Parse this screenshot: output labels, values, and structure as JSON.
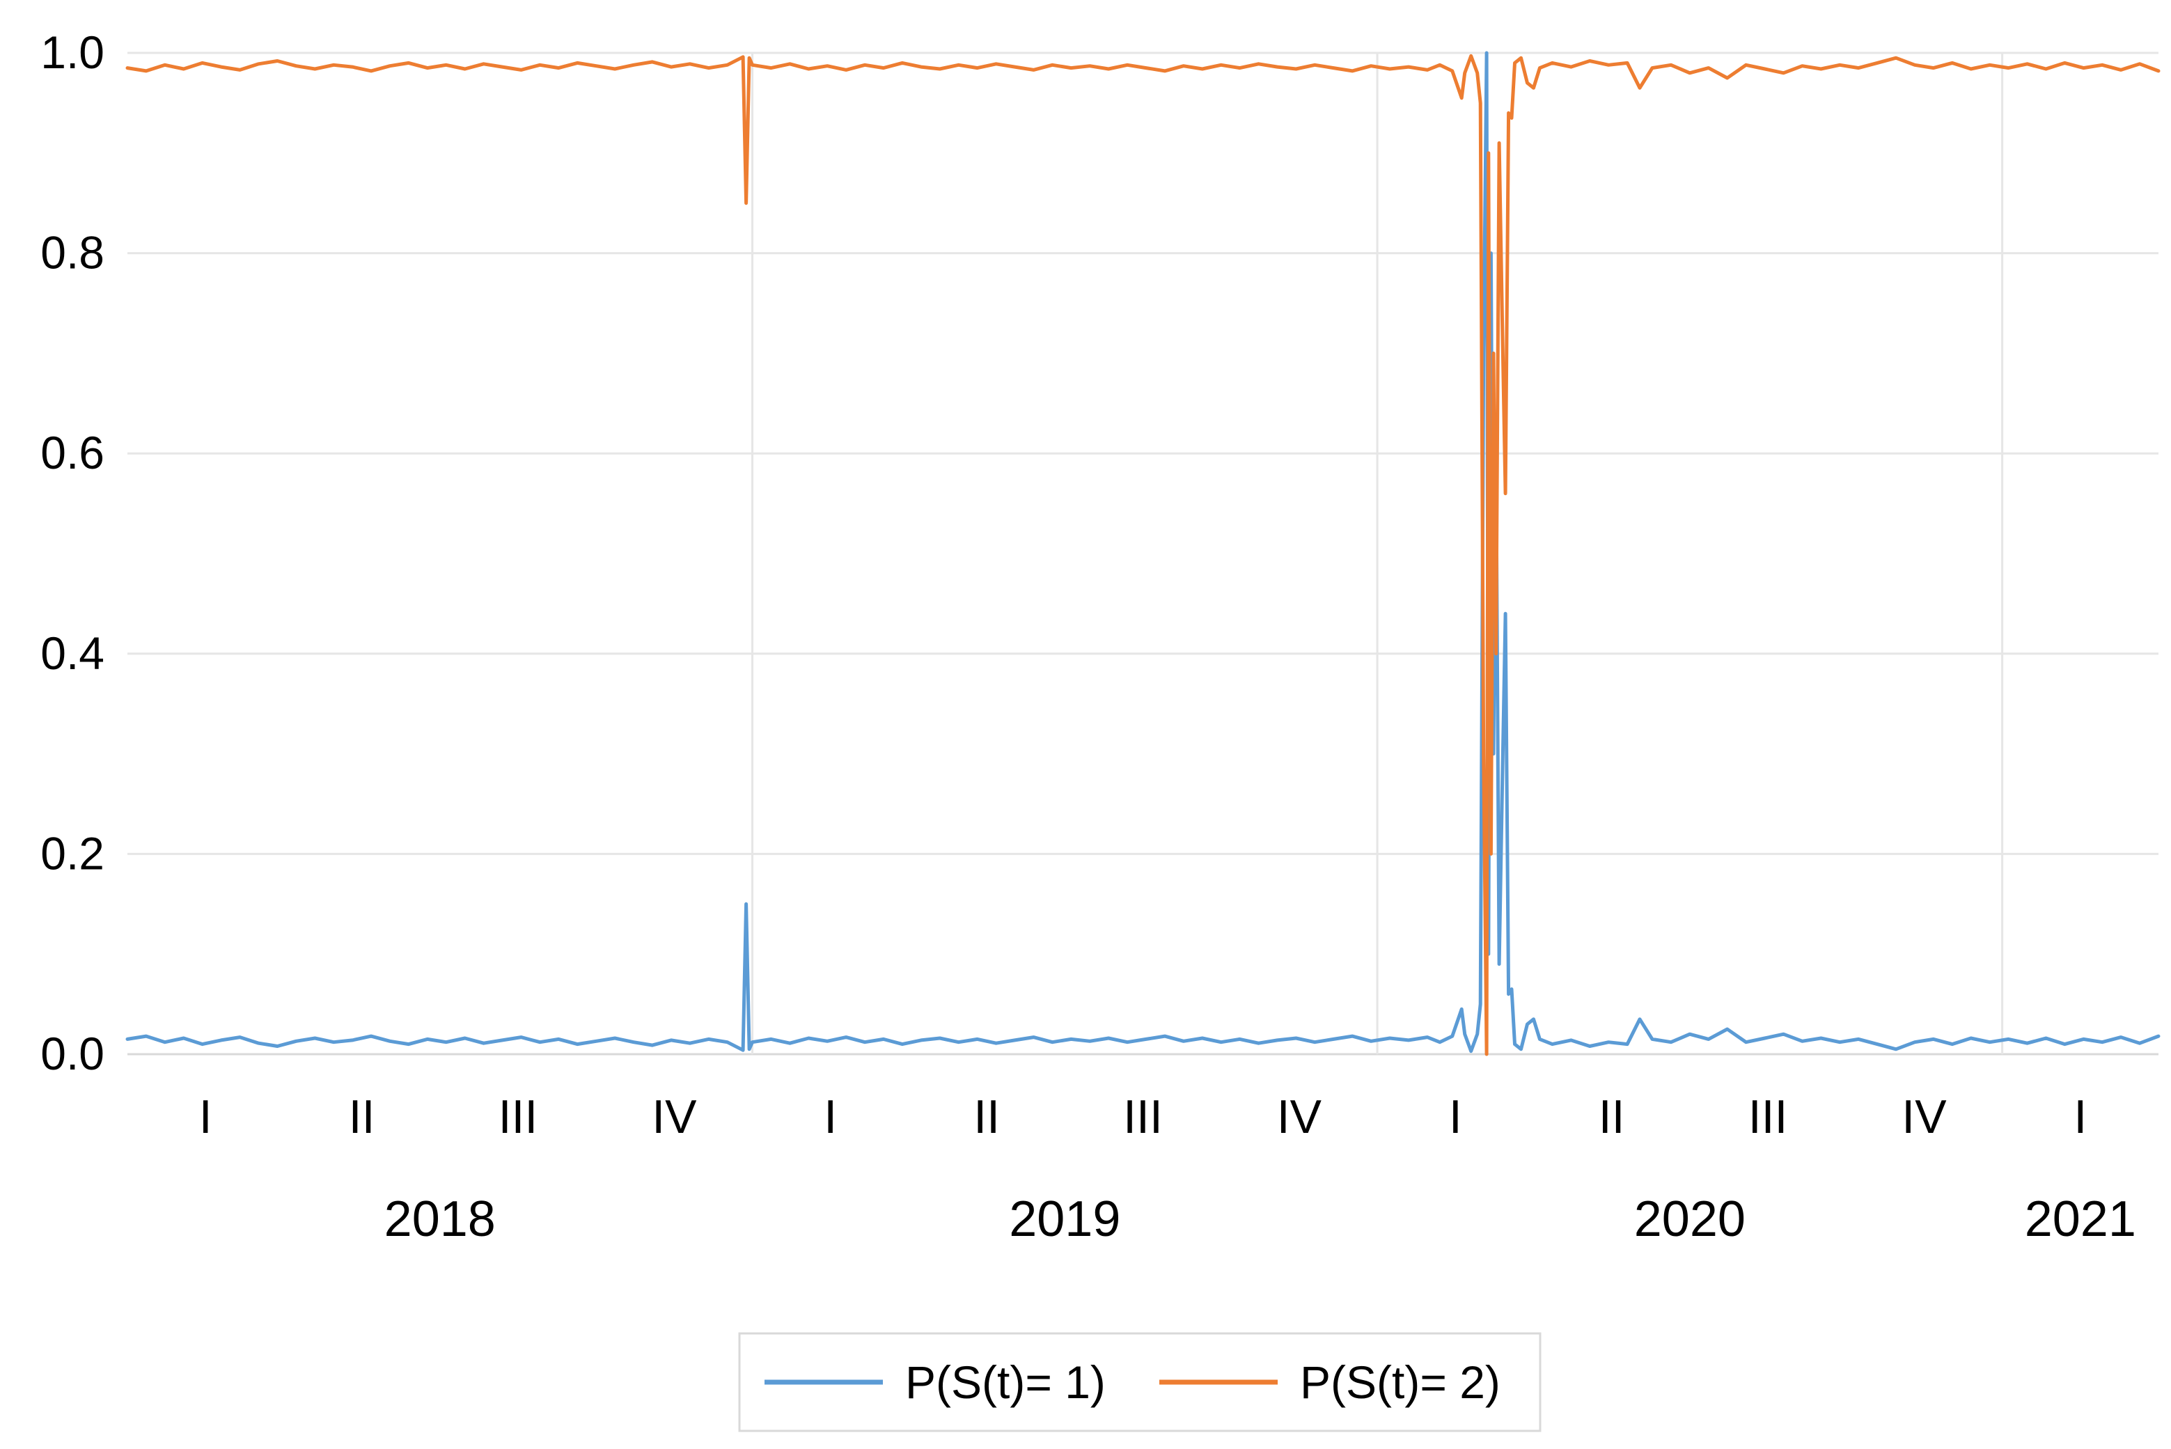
{
  "chart_data": {
    "type": "line",
    "title": "",
    "xlabel": "",
    "ylabel": "",
    "ylim": [
      0.0,
      1.0
    ],
    "y_ticks": [
      "0.0",
      "0.2",
      "0.4",
      "0.6",
      "0.8",
      "1.0"
    ],
    "grid": "horizontal gridlines plus vertical year separators",
    "legend_position": "bottom-center",
    "quarter_labels": [
      "I",
      "II",
      "III",
      "IV",
      "I",
      "II",
      "III",
      "IV",
      "I",
      "II",
      "III",
      "IV",
      "I"
    ],
    "year_labels": [
      "2018",
      "2019",
      "2020",
      "2021"
    ],
    "x_period": [
      "2018-01",
      "2021-03"
    ],
    "series": [
      {
        "name": "P(S(t)= 1)",
        "color": "#5B9BD5",
        "points": [
          [
            2018.0,
            0.015
          ],
          [
            2018.03,
            0.018
          ],
          [
            2018.06,
            0.012
          ],
          [
            2018.09,
            0.016
          ],
          [
            2018.12,
            0.01
          ],
          [
            2018.15,
            0.014
          ],
          [
            2018.18,
            0.017
          ],
          [
            2018.21,
            0.011
          ],
          [
            2018.24,
            0.008
          ],
          [
            2018.27,
            0.013
          ],
          [
            2018.3,
            0.016
          ],
          [
            2018.33,
            0.012
          ],
          [
            2018.36,
            0.014
          ],
          [
            2018.39,
            0.018
          ],
          [
            2018.42,
            0.013
          ],
          [
            2018.45,
            0.01
          ],
          [
            2018.48,
            0.015
          ],
          [
            2018.51,
            0.012
          ],
          [
            2018.54,
            0.016
          ],
          [
            2018.57,
            0.011
          ],
          [
            2018.6,
            0.014
          ],
          [
            2018.63,
            0.017
          ],
          [
            2018.66,
            0.012
          ],
          [
            2018.69,
            0.015
          ],
          [
            2018.72,
            0.01
          ],
          [
            2018.75,
            0.013
          ],
          [
            2018.78,
            0.016
          ],
          [
            2018.81,
            0.012
          ],
          [
            2018.84,
            0.009
          ],
          [
            2018.87,
            0.014
          ],
          [
            2018.9,
            0.011
          ],
          [
            2018.93,
            0.015
          ],
          [
            2018.96,
            0.012
          ],
          [
            2018.985,
            0.004
          ],
          [
            2018.99,
            0.15
          ],
          [
            2018.995,
            0.005
          ],
          [
            2019.0,
            0.012
          ],
          [
            2019.03,
            0.015
          ],
          [
            2019.06,
            0.011
          ],
          [
            2019.09,
            0.016
          ],
          [
            2019.12,
            0.013
          ],
          [
            2019.15,
            0.017
          ],
          [
            2019.18,
            0.012
          ],
          [
            2019.21,
            0.015
          ],
          [
            2019.24,
            0.01
          ],
          [
            2019.27,
            0.014
          ],
          [
            2019.3,
            0.016
          ],
          [
            2019.33,
            0.012
          ],
          [
            2019.36,
            0.015
          ],
          [
            2019.39,
            0.011
          ],
          [
            2019.42,
            0.014
          ],
          [
            2019.45,
            0.017
          ],
          [
            2019.48,
            0.012
          ],
          [
            2019.51,
            0.015
          ],
          [
            2019.54,
            0.013
          ],
          [
            2019.57,
            0.016
          ],
          [
            2019.6,
            0.012
          ],
          [
            2019.63,
            0.015
          ],
          [
            2019.66,
            0.018
          ],
          [
            2019.69,
            0.013
          ],
          [
            2019.72,
            0.016
          ],
          [
            2019.75,
            0.012
          ],
          [
            2019.78,
            0.015
          ],
          [
            2019.81,
            0.011
          ],
          [
            2019.84,
            0.014
          ],
          [
            2019.87,
            0.016
          ],
          [
            2019.9,
            0.012
          ],
          [
            2019.93,
            0.015
          ],
          [
            2019.96,
            0.018
          ],
          [
            2019.99,
            0.013
          ],
          [
            2020.02,
            0.016
          ],
          [
            2020.05,
            0.014
          ],
          [
            2020.08,
            0.017
          ],
          [
            2020.1,
            0.012
          ],
          [
            2020.12,
            0.018
          ],
          [
            2020.135,
            0.045
          ],
          [
            2020.14,
            0.02
          ],
          [
            2020.15,
            0.003
          ],
          [
            2020.16,
            0.02
          ],
          [
            2020.165,
            0.05
          ],
          [
            2020.17,
            0.7
          ],
          [
            2020.175,
            1.0
          ],
          [
            2020.178,
            0.1
          ],
          [
            2020.182,
            0.8
          ],
          [
            2020.186,
            0.3
          ],
          [
            2020.19,
            0.6
          ],
          [
            2020.195,
            0.09
          ],
          [
            2020.2,
            0.27
          ],
          [
            2020.205,
            0.44
          ],
          [
            2020.21,
            0.06
          ],
          [
            2020.215,
            0.065
          ],
          [
            2020.22,
            0.01
          ],
          [
            2020.23,
            0.005
          ],
          [
            2020.24,
            0.03
          ],
          [
            2020.25,
            0.035
          ],
          [
            2020.26,
            0.015
          ],
          [
            2020.28,
            0.01
          ],
          [
            2020.31,
            0.014
          ],
          [
            2020.34,
            0.008
          ],
          [
            2020.37,
            0.012
          ],
          [
            2020.4,
            0.01
          ],
          [
            2020.42,
            0.035
          ],
          [
            2020.44,
            0.015
          ],
          [
            2020.47,
            0.012
          ],
          [
            2020.5,
            0.02
          ],
          [
            2020.53,
            0.015
          ],
          [
            2020.56,
            0.025
          ],
          [
            2020.59,
            0.012
          ],
          [
            2020.62,
            0.016
          ],
          [
            2020.65,
            0.02
          ],
          [
            2020.68,
            0.013
          ],
          [
            2020.71,
            0.016
          ],
          [
            2020.74,
            0.012
          ],
          [
            2020.77,
            0.015
          ],
          [
            2020.8,
            0.01
          ],
          [
            2020.83,
            0.005
          ],
          [
            2020.86,
            0.012
          ],
          [
            2020.89,
            0.015
          ],
          [
            2020.92,
            0.01
          ],
          [
            2020.95,
            0.016
          ],
          [
            2020.98,
            0.012
          ],
          [
            2021.01,
            0.015
          ],
          [
            2021.04,
            0.011
          ],
          [
            2021.07,
            0.016
          ],
          [
            2021.1,
            0.01
          ],
          [
            2021.13,
            0.015
          ],
          [
            2021.16,
            0.012
          ],
          [
            2021.19,
            0.017
          ],
          [
            2021.22,
            0.011
          ],
          [
            2021.25,
            0.018
          ]
        ]
      },
      {
        "name": "P(S(t)= 2)",
        "color": "#ED7D31",
        "points": [
          [
            2018.0,
            0.985
          ],
          [
            2018.03,
            0.982
          ],
          [
            2018.06,
            0.988
          ],
          [
            2018.09,
            0.984
          ],
          [
            2018.12,
            0.99
          ],
          [
            2018.15,
            0.986
          ],
          [
            2018.18,
            0.983
          ],
          [
            2018.21,
            0.989
          ],
          [
            2018.24,
            0.992
          ],
          [
            2018.27,
            0.987
          ],
          [
            2018.3,
            0.984
          ],
          [
            2018.33,
            0.988
          ],
          [
            2018.36,
            0.986
          ],
          [
            2018.39,
            0.982
          ],
          [
            2018.42,
            0.987
          ],
          [
            2018.45,
            0.99
          ],
          [
            2018.48,
            0.985
          ],
          [
            2018.51,
            0.988
          ],
          [
            2018.54,
            0.984
          ],
          [
            2018.57,
            0.989
          ],
          [
            2018.6,
            0.986
          ],
          [
            2018.63,
            0.983
          ],
          [
            2018.66,
            0.988
          ],
          [
            2018.69,
            0.985
          ],
          [
            2018.72,
            0.99
          ],
          [
            2018.75,
            0.987
          ],
          [
            2018.78,
            0.984
          ],
          [
            2018.81,
            0.988
          ],
          [
            2018.84,
            0.991
          ],
          [
            2018.87,
            0.986
          ],
          [
            2018.9,
            0.989
          ],
          [
            2018.93,
            0.985
          ],
          [
            2018.96,
            0.988
          ],
          [
            2018.985,
            0.996
          ],
          [
            2018.99,
            0.85
          ],
          [
            2018.995,
            0.995
          ],
          [
            2019.0,
            0.988
          ],
          [
            2019.03,
            0.985
          ],
          [
            2019.06,
            0.989
          ],
          [
            2019.09,
            0.984
          ],
          [
            2019.12,
            0.987
          ],
          [
            2019.15,
            0.983
          ],
          [
            2019.18,
            0.988
          ],
          [
            2019.21,
            0.985
          ],
          [
            2019.24,
            0.99
          ],
          [
            2019.27,
            0.986
          ],
          [
            2019.3,
            0.984
          ],
          [
            2019.33,
            0.988
          ],
          [
            2019.36,
            0.985
          ],
          [
            2019.39,
            0.989
          ],
          [
            2019.42,
            0.986
          ],
          [
            2019.45,
            0.983
          ],
          [
            2019.48,
            0.988
          ],
          [
            2019.51,
            0.985
          ],
          [
            2019.54,
            0.987
          ],
          [
            2019.57,
            0.984
          ],
          [
            2019.6,
            0.988
          ],
          [
            2019.63,
            0.985
          ],
          [
            2019.66,
            0.982
          ],
          [
            2019.69,
            0.987
          ],
          [
            2019.72,
            0.984
          ],
          [
            2019.75,
            0.988
          ],
          [
            2019.78,
            0.985
          ],
          [
            2019.81,
            0.989
          ],
          [
            2019.84,
            0.986
          ],
          [
            2019.87,
            0.984
          ],
          [
            2019.9,
            0.988
          ],
          [
            2019.93,
            0.985
          ],
          [
            2019.96,
            0.982
          ],
          [
            2019.99,
            0.987
          ],
          [
            2020.02,
            0.984
          ],
          [
            2020.05,
            0.986
          ],
          [
            2020.08,
            0.983
          ],
          [
            2020.1,
            0.988
          ],
          [
            2020.12,
            0.982
          ],
          [
            2020.135,
            0.955
          ],
          [
            2020.14,
            0.98
          ],
          [
            2020.15,
            0.997
          ],
          [
            2020.16,
            0.98
          ],
          [
            2020.165,
            0.95
          ],
          [
            2020.17,
            0.3
          ],
          [
            2020.175,
            0.0
          ],
          [
            2020.178,
            0.9
          ],
          [
            2020.182,
            0.2
          ],
          [
            2020.186,
            0.7
          ],
          [
            2020.19,
            0.4
          ],
          [
            2020.195,
            0.91
          ],
          [
            2020.2,
            0.73
          ],
          [
            2020.205,
            0.56
          ],
          [
            2020.21,
            0.94
          ],
          [
            2020.215,
            0.935
          ],
          [
            2020.22,
            0.99
          ],
          [
            2020.23,
            0.995
          ],
          [
            2020.24,
            0.97
          ],
          [
            2020.25,
            0.965
          ],
          [
            2020.26,
            0.985
          ],
          [
            2020.28,
            0.99
          ],
          [
            2020.31,
            0.986
          ],
          [
            2020.34,
            0.992
          ],
          [
            2020.37,
            0.988
          ],
          [
            2020.4,
            0.99
          ],
          [
            2020.42,
            0.965
          ],
          [
            2020.44,
            0.985
          ],
          [
            2020.47,
            0.988
          ],
          [
            2020.5,
            0.98
          ],
          [
            2020.53,
            0.985
          ],
          [
            2020.56,
            0.975
          ],
          [
            2020.59,
            0.988
          ],
          [
            2020.62,
            0.984
          ],
          [
            2020.65,
            0.98
          ],
          [
            2020.68,
            0.987
          ],
          [
            2020.71,
            0.984
          ],
          [
            2020.74,
            0.988
          ],
          [
            2020.77,
            0.985
          ],
          [
            2020.8,
            0.99
          ],
          [
            2020.83,
            0.995
          ],
          [
            2020.86,
            0.988
          ],
          [
            2020.89,
            0.985
          ],
          [
            2020.92,
            0.99
          ],
          [
            2020.95,
            0.984
          ],
          [
            2020.98,
            0.988
          ],
          [
            2021.01,
            0.985
          ],
          [
            2021.04,
            0.989
          ],
          [
            2021.07,
            0.984
          ],
          [
            2021.1,
            0.99
          ],
          [
            2021.13,
            0.985
          ],
          [
            2021.16,
            0.988
          ],
          [
            2021.19,
            0.983
          ],
          [
            2021.22,
            0.989
          ],
          [
            2021.25,
            0.982
          ]
        ]
      }
    ]
  }
}
